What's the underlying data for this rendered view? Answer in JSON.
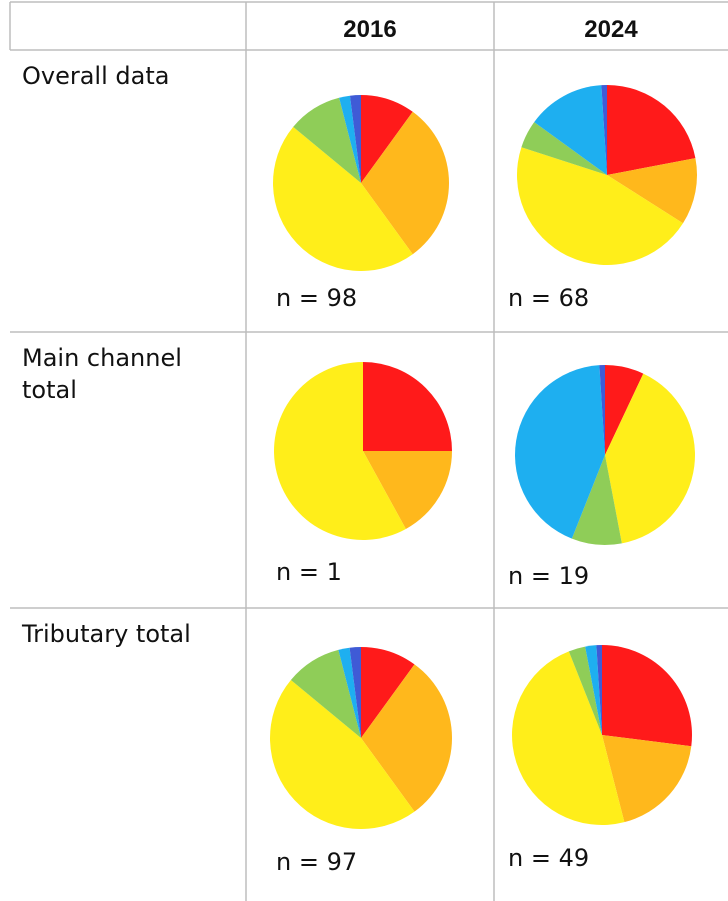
{
  "table": {
    "header": [
      "2016",
      "2024"
    ],
    "rows": [
      {
        "label": "Overall data",
        "cells": [
          {
            "n_label": "n = 98",
            "chart": {
              "type": "pie",
              "values": [
                10,
                30,
                46,
                10,
                2,
                2
              ],
              "colors": [
                "#ff1a1a",
                "#ffb81c",
                "#ffee1a",
                "#8fcd58",
                "#1eaff0",
                "#3f5bd6"
              ]
            }
          },
          {
            "n_label": "n = 68",
            "chart": {
              "type": "pie",
              "values": [
                22,
                12,
                46,
                5,
                14,
                1
              ],
              "colors": [
                "#ff1a1a",
                "#ffb81c",
                "#ffee1a",
                "#8fcd58",
                "#1eaff0",
                "#3f5bd6"
              ]
            }
          }
        ]
      },
      {
        "label": "Main channel total",
        "cells": [
          {
            "n_label": "n = 1",
            "chart": {
              "type": "pie",
              "values": [
                25,
                17,
                58
              ],
              "colors": [
                "#ff1a1a",
                "#ffb81c",
                "#ffee1a"
              ]
            }
          },
          {
            "n_label": "n = 19",
            "chart": {
              "type": "pie",
              "values": [
                7,
                40,
                9,
                43,
                1
              ],
              "colors": [
                "#ff1a1a",
                "#ffee1a",
                "#8fcd58",
                "#1eaff0",
                "#3f5bd6"
              ]
            }
          }
        ]
      },
      {
        "label": "Tributary total",
        "cells": [
          {
            "n_label": "n = 97",
            "chart": {
              "type": "pie",
              "values": [
                10,
                30,
                46,
                10,
                2,
                2
              ],
              "colors": [
                "#ff1a1a",
                "#ffb81c",
                "#ffee1a",
                "#8fcd58",
                "#1eaff0",
                "#3f5bd6"
              ]
            }
          },
          {
            "n_label": "n = 49",
            "chart": {
              "type": "pie",
              "values": [
                27,
                19,
                48,
                3,
                2,
                1
              ],
              "colors": [
                "#ff1a1a",
                "#ffb81c",
                "#ffee1a",
                "#8fcd58",
                "#1eaff0",
                "#3f5bd6"
              ]
            }
          }
        ]
      }
    ]
  }
}
